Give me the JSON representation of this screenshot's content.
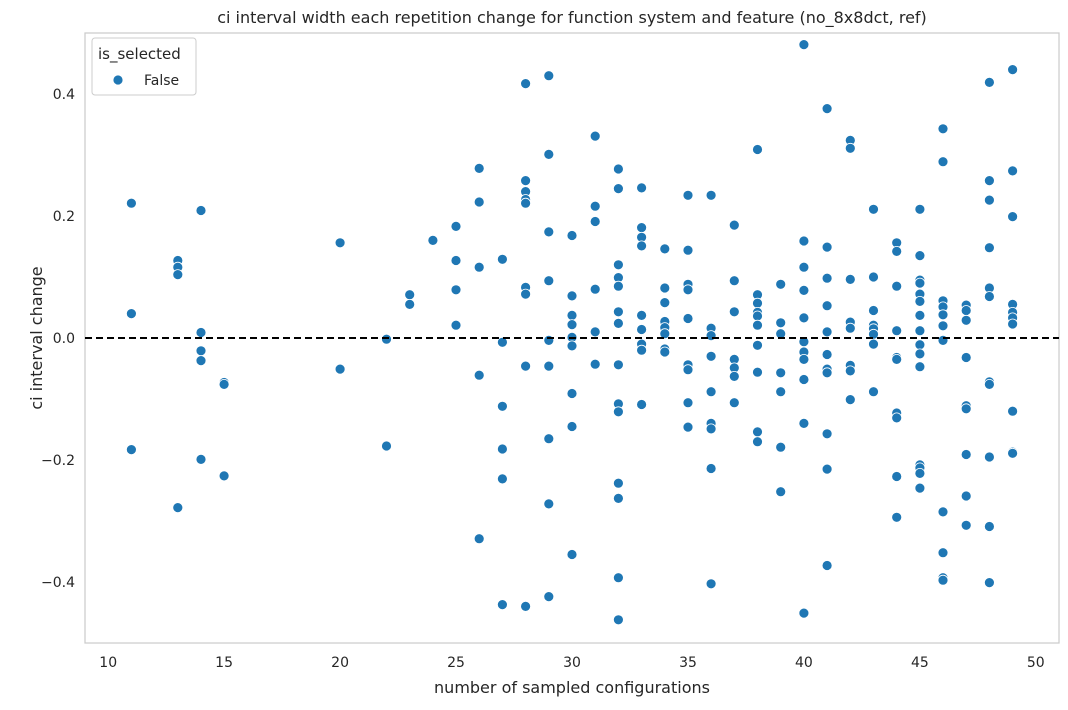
{
  "chart_data": {
    "type": "scatter",
    "title": "ci interval width each repetition change for function system and feature (no_8x8dct, ref)",
    "xlabel": "number of sampled configurations",
    "ylabel": "ci interval change",
    "xlim": [
      9,
      51
    ],
    "ylim": [
      -0.5,
      0.5
    ],
    "xticks": [
      10,
      15,
      20,
      25,
      30,
      35,
      40,
      45,
      50
    ],
    "xtick_labels": [
      "10",
      "15",
      "20",
      "25",
      "30",
      "35",
      "40",
      "45",
      "50"
    ],
    "yticks": [
      -0.4,
      -0.2,
      0.0,
      0.2,
      0.4
    ],
    "ytick_labels": [
      "−0.4",
      "−0.2",
      "0.0",
      "0.2",
      "0.4"
    ],
    "grid": false,
    "reference_line": {
      "y": 0.0,
      "style": "dashed",
      "color": "#000000"
    },
    "legend": {
      "title": "is_selected",
      "position": "top-left",
      "entries": [
        {
          "label": "False",
          "color": "#1f77b4"
        }
      ]
    },
    "series": [
      {
        "name": "False",
        "color": "#1f77b4",
        "points": [
          [
            11,
            0.221
          ],
          [
            11,
            0.04
          ],
          [
            11,
            -0.183
          ],
          [
            13,
            0.127
          ],
          [
            13,
            0.116
          ],
          [
            13,
            0.104
          ],
          [
            13,
            -0.278
          ],
          [
            14,
            0.209
          ],
          [
            14,
            0.009
          ],
          [
            14,
            -0.021
          ],
          [
            14,
            -0.037
          ],
          [
            14,
            -0.199
          ],
          [
            15,
            -0.073
          ],
          [
            15,
            -0.076
          ],
          [
            15,
            -0.226
          ],
          [
            20,
            0.156
          ],
          [
            20,
            -0.051
          ],
          [
            22,
            -0.002
          ],
          [
            22,
            -0.177
          ],
          [
            23,
            0.071
          ],
          [
            23,
            0.055
          ],
          [
            24,
            0.16
          ],
          [
            25,
            0.183
          ],
          [
            25,
            0.127
          ],
          [
            25,
            0.079
          ],
          [
            25,
            0.021
          ],
          [
            26,
            0.278
          ],
          [
            26,
            0.223
          ],
          [
            26,
            0.116
          ],
          [
            26,
            -0.061
          ],
          [
            26,
            -0.329
          ],
          [
            27,
            0.129
          ],
          [
            27,
            -0.007
          ],
          [
            27,
            -0.112
          ],
          [
            27,
            -0.182
          ],
          [
            27,
            -0.231
          ],
          [
            27,
            -0.437
          ],
          [
            28,
            0.417
          ],
          [
            28,
            0.258
          ],
          [
            28,
            0.24
          ],
          [
            28,
            0.227
          ],
          [
            28,
            0.221
          ],
          [
            28,
            0.083
          ],
          [
            28,
            0.072
          ],
          [
            28,
            -0.046
          ],
          [
            28,
            -0.44
          ],
          [
            29,
            0.43
          ],
          [
            29,
            0.301
          ],
          [
            29,
            0.174
          ],
          [
            29,
            0.094
          ],
          [
            29,
            -0.004
          ],
          [
            29,
            -0.046
          ],
          [
            29,
            -0.165
          ],
          [
            29,
            -0.272
          ],
          [
            29,
            -0.424
          ],
          [
            30,
            0.168
          ],
          [
            30,
            0.069
          ],
          [
            30,
            0.037
          ],
          [
            30,
            0.022
          ],
          [
            30,
            0.001
          ],
          [
            30,
            -0.013
          ],
          [
            30,
            -0.091
          ],
          [
            30,
            -0.145
          ],
          [
            30,
            -0.355
          ],
          [
            31,
            0.331
          ],
          [
            31,
            0.216
          ],
          [
            31,
            0.191
          ],
          [
            31,
            0.08
          ],
          [
            31,
            0.01
          ],
          [
            31,
            -0.043
          ],
          [
            32,
            0.277
          ],
          [
            32,
            0.245
          ],
          [
            32,
            0.12
          ],
          [
            32,
            0.099
          ],
          [
            32,
            0.085
          ],
          [
            32,
            0.043
          ],
          [
            32,
            0.024
          ],
          [
            32,
            -0.044
          ],
          [
            32,
            -0.108
          ],
          [
            32,
            -0.121
          ],
          [
            32,
            -0.238
          ],
          [
            32,
            -0.263
          ],
          [
            32,
            -0.393
          ],
          [
            32,
            -0.462
          ],
          [
            33,
            0.246
          ],
          [
            33,
            0.181
          ],
          [
            33,
            0.165
          ],
          [
            33,
            0.151
          ],
          [
            33,
            0.037
          ],
          [
            33,
            0.014
          ],
          [
            33,
            -0.01
          ],
          [
            33,
            -0.02
          ],
          [
            33,
            -0.109
          ],
          [
            34,
            0.146
          ],
          [
            34,
            0.082
          ],
          [
            34,
            0.058
          ],
          [
            34,
            0.027
          ],
          [
            34,
            0.017
          ],
          [
            34,
            0.007
          ],
          [
            34,
            -0.018
          ],
          [
            34,
            -0.023
          ],
          [
            35,
            0.234
          ],
          [
            35,
            0.144
          ],
          [
            35,
            0.088
          ],
          [
            35,
            0.079
          ],
          [
            35,
            0.032
          ],
          [
            35,
            -0.044
          ],
          [
            35,
            -0.052
          ],
          [
            35,
            -0.106
          ],
          [
            35,
            -0.146
          ],
          [
            36,
            0.234
          ],
          [
            36,
            0.016
          ],
          [
            36,
            0.004
          ],
          [
            36,
            -0.03
          ],
          [
            36,
            -0.088
          ],
          [
            36,
            -0.14
          ],
          [
            36,
            -0.149
          ],
          [
            36,
            -0.214
          ],
          [
            36,
            -0.403
          ],
          [
            37,
            0.185
          ],
          [
            37,
            0.094
          ],
          [
            37,
            0.043
          ],
          [
            37,
            -0.035
          ],
          [
            37,
            -0.049
          ],
          [
            37,
            -0.063
          ],
          [
            37,
            -0.106
          ],
          [
            38,
            0.309
          ],
          [
            38,
            0.071
          ],
          [
            38,
            0.057
          ],
          [
            38,
            0.042
          ],
          [
            38,
            0.036
          ],
          [
            38,
            0.021
          ],
          [
            38,
            -0.012
          ],
          [
            38,
            -0.056
          ],
          [
            38,
            -0.154
          ],
          [
            38,
            -0.17
          ],
          [
            39,
            0.088
          ],
          [
            39,
            0.025
          ],
          [
            39,
            0.007
          ],
          [
            39,
            -0.057
          ],
          [
            39,
            -0.088
          ],
          [
            39,
            -0.179
          ],
          [
            39,
            -0.252
          ],
          [
            40,
            0.481
          ],
          [
            40,
            0.159
          ],
          [
            40,
            0.116
          ],
          [
            40,
            0.078
          ],
          [
            40,
            0.033
          ],
          [
            40,
            -0.006
          ],
          [
            40,
            -0.023
          ],
          [
            40,
            -0.035
          ],
          [
            40,
            -0.068
          ],
          [
            40,
            -0.14
          ],
          [
            40,
            -0.451
          ],
          [
            41,
            0.376
          ],
          [
            41,
            0.149
          ],
          [
            41,
            0.098
          ],
          [
            41,
            0.053
          ],
          [
            41,
            0.01
          ],
          [
            41,
            -0.027
          ],
          [
            41,
            -0.051
          ],
          [
            41,
            -0.057
          ],
          [
            41,
            -0.157
          ],
          [
            41,
            -0.215
          ],
          [
            41,
            -0.373
          ],
          [
            42,
            0.324
          ],
          [
            42,
            0.311
          ],
          [
            42,
            0.096
          ],
          [
            42,
            0.026
          ],
          [
            42,
            0.016
          ],
          [
            42,
            -0.045
          ],
          [
            42,
            -0.054
          ],
          [
            42,
            -0.101
          ],
          [
            43,
            0.211
          ],
          [
            43,
            0.1
          ],
          [
            43,
            0.045
          ],
          [
            43,
            0.021
          ],
          [
            43,
            0.015
          ],
          [
            43,
            0.006
          ],
          [
            43,
            -0.01
          ],
          [
            43,
            -0.088
          ],
          [
            44,
            0.156
          ],
          [
            44,
            0.142
          ],
          [
            44,
            0.085
          ],
          [
            44,
            0.012
          ],
          [
            44,
            -0.032
          ],
          [
            44,
            -0.035
          ],
          [
            44,
            -0.123
          ],
          [
            44,
            -0.131
          ],
          [
            44,
            -0.227
          ],
          [
            44,
            -0.294
          ],
          [
            45,
            0.211
          ],
          [
            45,
            0.135
          ],
          [
            45,
            0.095
          ],
          [
            45,
            0.09
          ],
          [
            45,
            0.072
          ],
          [
            45,
            0.06
          ],
          [
            45,
            0.037
          ],
          [
            45,
            0.012
          ],
          [
            45,
            -0.011
          ],
          [
            45,
            -0.026
          ],
          [
            45,
            -0.047
          ],
          [
            45,
            -0.208
          ],
          [
            45,
            -0.213
          ],
          [
            45,
            -0.222
          ],
          [
            45,
            -0.246
          ],
          [
            46,
            0.343
          ],
          [
            46,
            0.289
          ],
          [
            46,
            0.061
          ],
          [
            46,
            0.051
          ],
          [
            46,
            0.038
          ],
          [
            46,
            0.02
          ],
          [
            46,
            -0.004
          ],
          [
            46,
            -0.285
          ],
          [
            46,
            -0.352
          ],
          [
            46,
            -0.393
          ],
          [
            46,
            -0.397
          ],
          [
            47,
            0.054
          ],
          [
            47,
            0.045
          ],
          [
            47,
            0.029
          ],
          [
            47,
            -0.032
          ],
          [
            47,
            -0.111
          ],
          [
            47,
            -0.116
          ],
          [
            47,
            -0.191
          ],
          [
            47,
            -0.259
          ],
          [
            47,
            -0.307
          ],
          [
            48,
            0.419
          ],
          [
            48,
            0.258
          ],
          [
            48,
            0.226
          ],
          [
            48,
            0.148
          ],
          [
            48,
            0.082
          ],
          [
            48,
            0.068
          ],
          [
            48,
            -0.072
          ],
          [
            48,
            -0.076
          ],
          [
            48,
            -0.195
          ],
          [
            48,
            -0.309
          ],
          [
            48,
            -0.401
          ],
          [
            49,
            0.44
          ],
          [
            49,
            0.274
          ],
          [
            49,
            0.199
          ],
          [
            49,
            0.055
          ],
          [
            49,
            0.042
          ],
          [
            49,
            0.033
          ],
          [
            49,
            0.023
          ],
          [
            49,
            -0.12
          ],
          [
            49,
            -0.187
          ],
          [
            49,
            -0.189
          ]
        ]
      }
    ]
  }
}
